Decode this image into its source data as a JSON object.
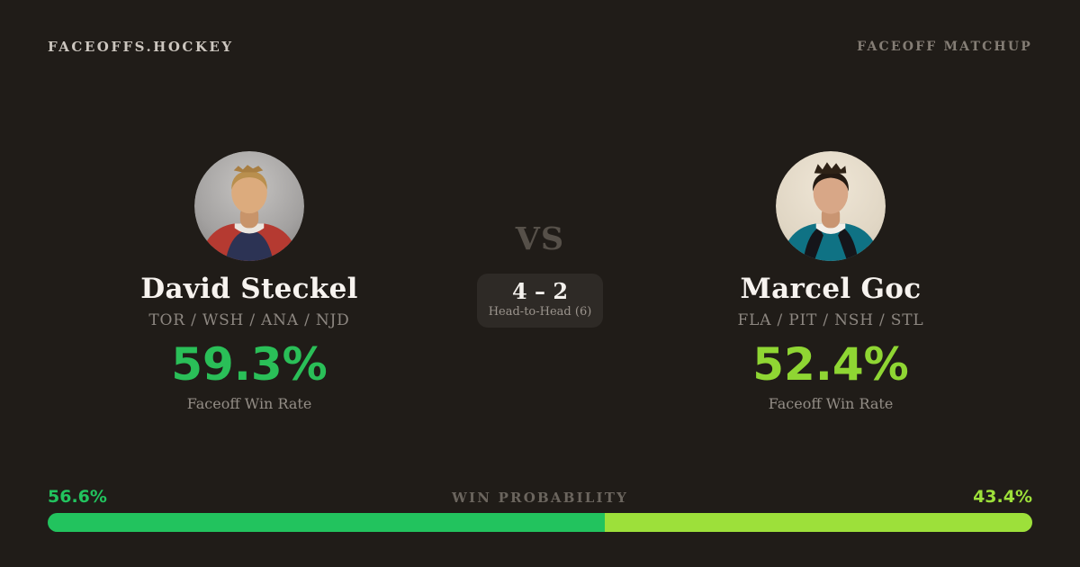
{
  "header": {
    "brand": "FACEOFFS.HOCKEY",
    "page_label": "FACEOFF MATCHUP"
  },
  "players": {
    "left": {
      "name": "David Steckel",
      "teams": "TOR / WSH / ANA / NJD",
      "win_rate": "59.3%",
      "win_rate_label": "Faceoff Win Rate",
      "accent_color": "#2abf58",
      "avatar": "player-headshot-gray-background-red-jersey"
    },
    "right": {
      "name": "Marcel Goc",
      "teams": "FLA / PIT / NSH / STL",
      "win_rate": "52.4%",
      "win_rate_label": "Faceoff Win Rate",
      "accent_color": "#8fd633",
      "avatar": "player-headshot-cream-background-teal-jersey"
    }
  },
  "center": {
    "vs": "VS",
    "head_to_head_score": "4 – 2",
    "head_to_head_label": "Head-to-Head (6)"
  },
  "probability": {
    "title": "WIN PROBABILITY",
    "left": {
      "value": "56.6%",
      "pct": 56.6,
      "color": "#22c35e"
    },
    "right": {
      "value": "43.4%",
      "pct": 43.4,
      "color": "#9de03a"
    }
  },
  "colors": {
    "background": "#201c18",
    "card_box": "#2e2a26",
    "text_primary": "#f7f3ef",
    "text_muted": "#8d8781"
  }
}
